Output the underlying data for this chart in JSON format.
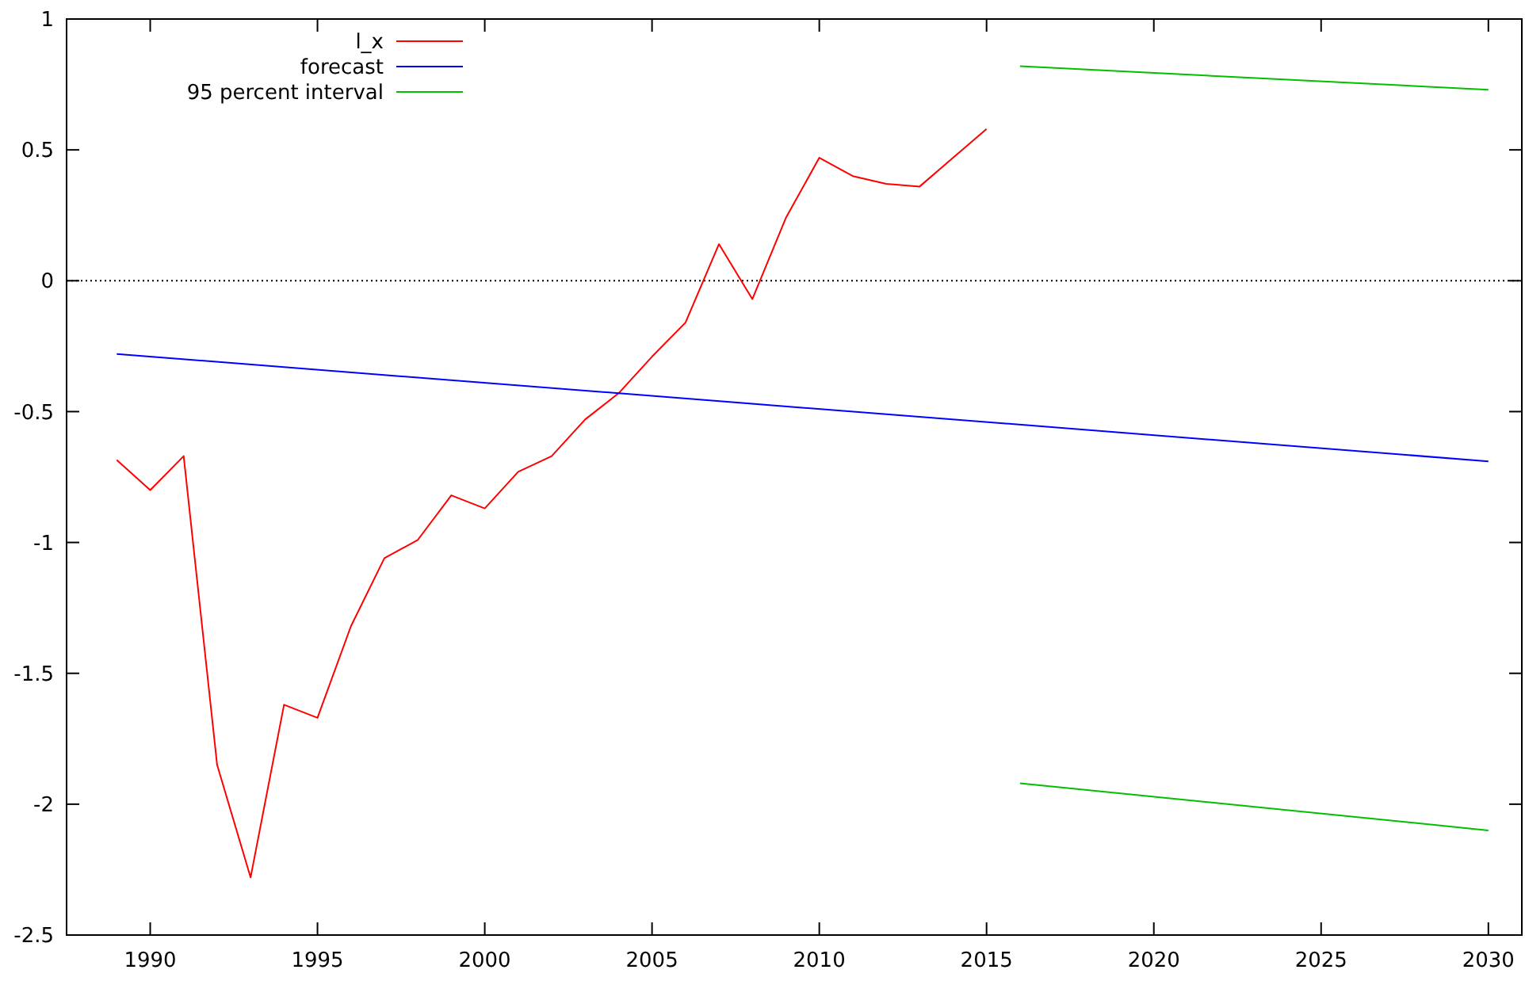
{
  "chart_data": {
    "type": "line",
    "xlim": [
      1987.5,
      2031
    ],
    "ylim": [
      -2.5,
      1
    ],
    "xticks": [
      1990,
      1995,
      2000,
      2005,
      2010,
      2015,
      2020,
      2025,
      2030
    ],
    "yticks": [
      -2.5,
      -2,
      -1.5,
      -1,
      -0.5,
      0,
      0.5,
      1
    ],
    "grid": false,
    "legend": "top left",
    "line_style": "solid",
    "marker": "none",
    "series": [
      {
        "name": "l_x",
        "color": "#ff0000",
        "x": [
          1989,
          1990,
          1991,
          1992,
          1993,
          1994,
          1995,
          1996,
          1997,
          1998,
          1999,
          2000,
          2001,
          2002,
          2003,
          2004,
          2005,
          2006,
          2007,
          2008,
          2009,
          2010,
          2011,
          2012,
          2013,
          2014,
          2015
        ],
        "values": [
          -0.685,
          -0.8,
          -0.67,
          -1.85,
          -2.28,
          -1.62,
          -1.67,
          -1.32,
          -1.06,
          -0.99,
          -0.82,
          -0.87,
          -0.73,
          -0.67,
          -0.53,
          -0.43,
          -0.29,
          -0.16,
          0.14,
          -0.07,
          0.24,
          0.47,
          0.4,
          0.37,
          0.36,
          0.47,
          0.58
        ]
      },
      {
        "name": "forecast",
        "color": "#0000ff",
        "x": [
          1989,
          2030
        ],
        "values": [
          -0.28,
          -0.69
        ]
      },
      {
        "name": "95 percent interval",
        "color": "#00c000",
        "x": [
          2016,
          2030
        ],
        "values": [
          0.82,
          0.73
        ]
      },
      {
        "color": "#00c000",
        "x": [
          2016,
          2030
        ],
        "values": [
          -1.92,
          -2.1
        ]
      }
    ],
    "ref_lines": [
      {
        "axis": "y",
        "value": 0,
        "line_style": "dotted",
        "color": "#000000"
      }
    ]
  }
}
